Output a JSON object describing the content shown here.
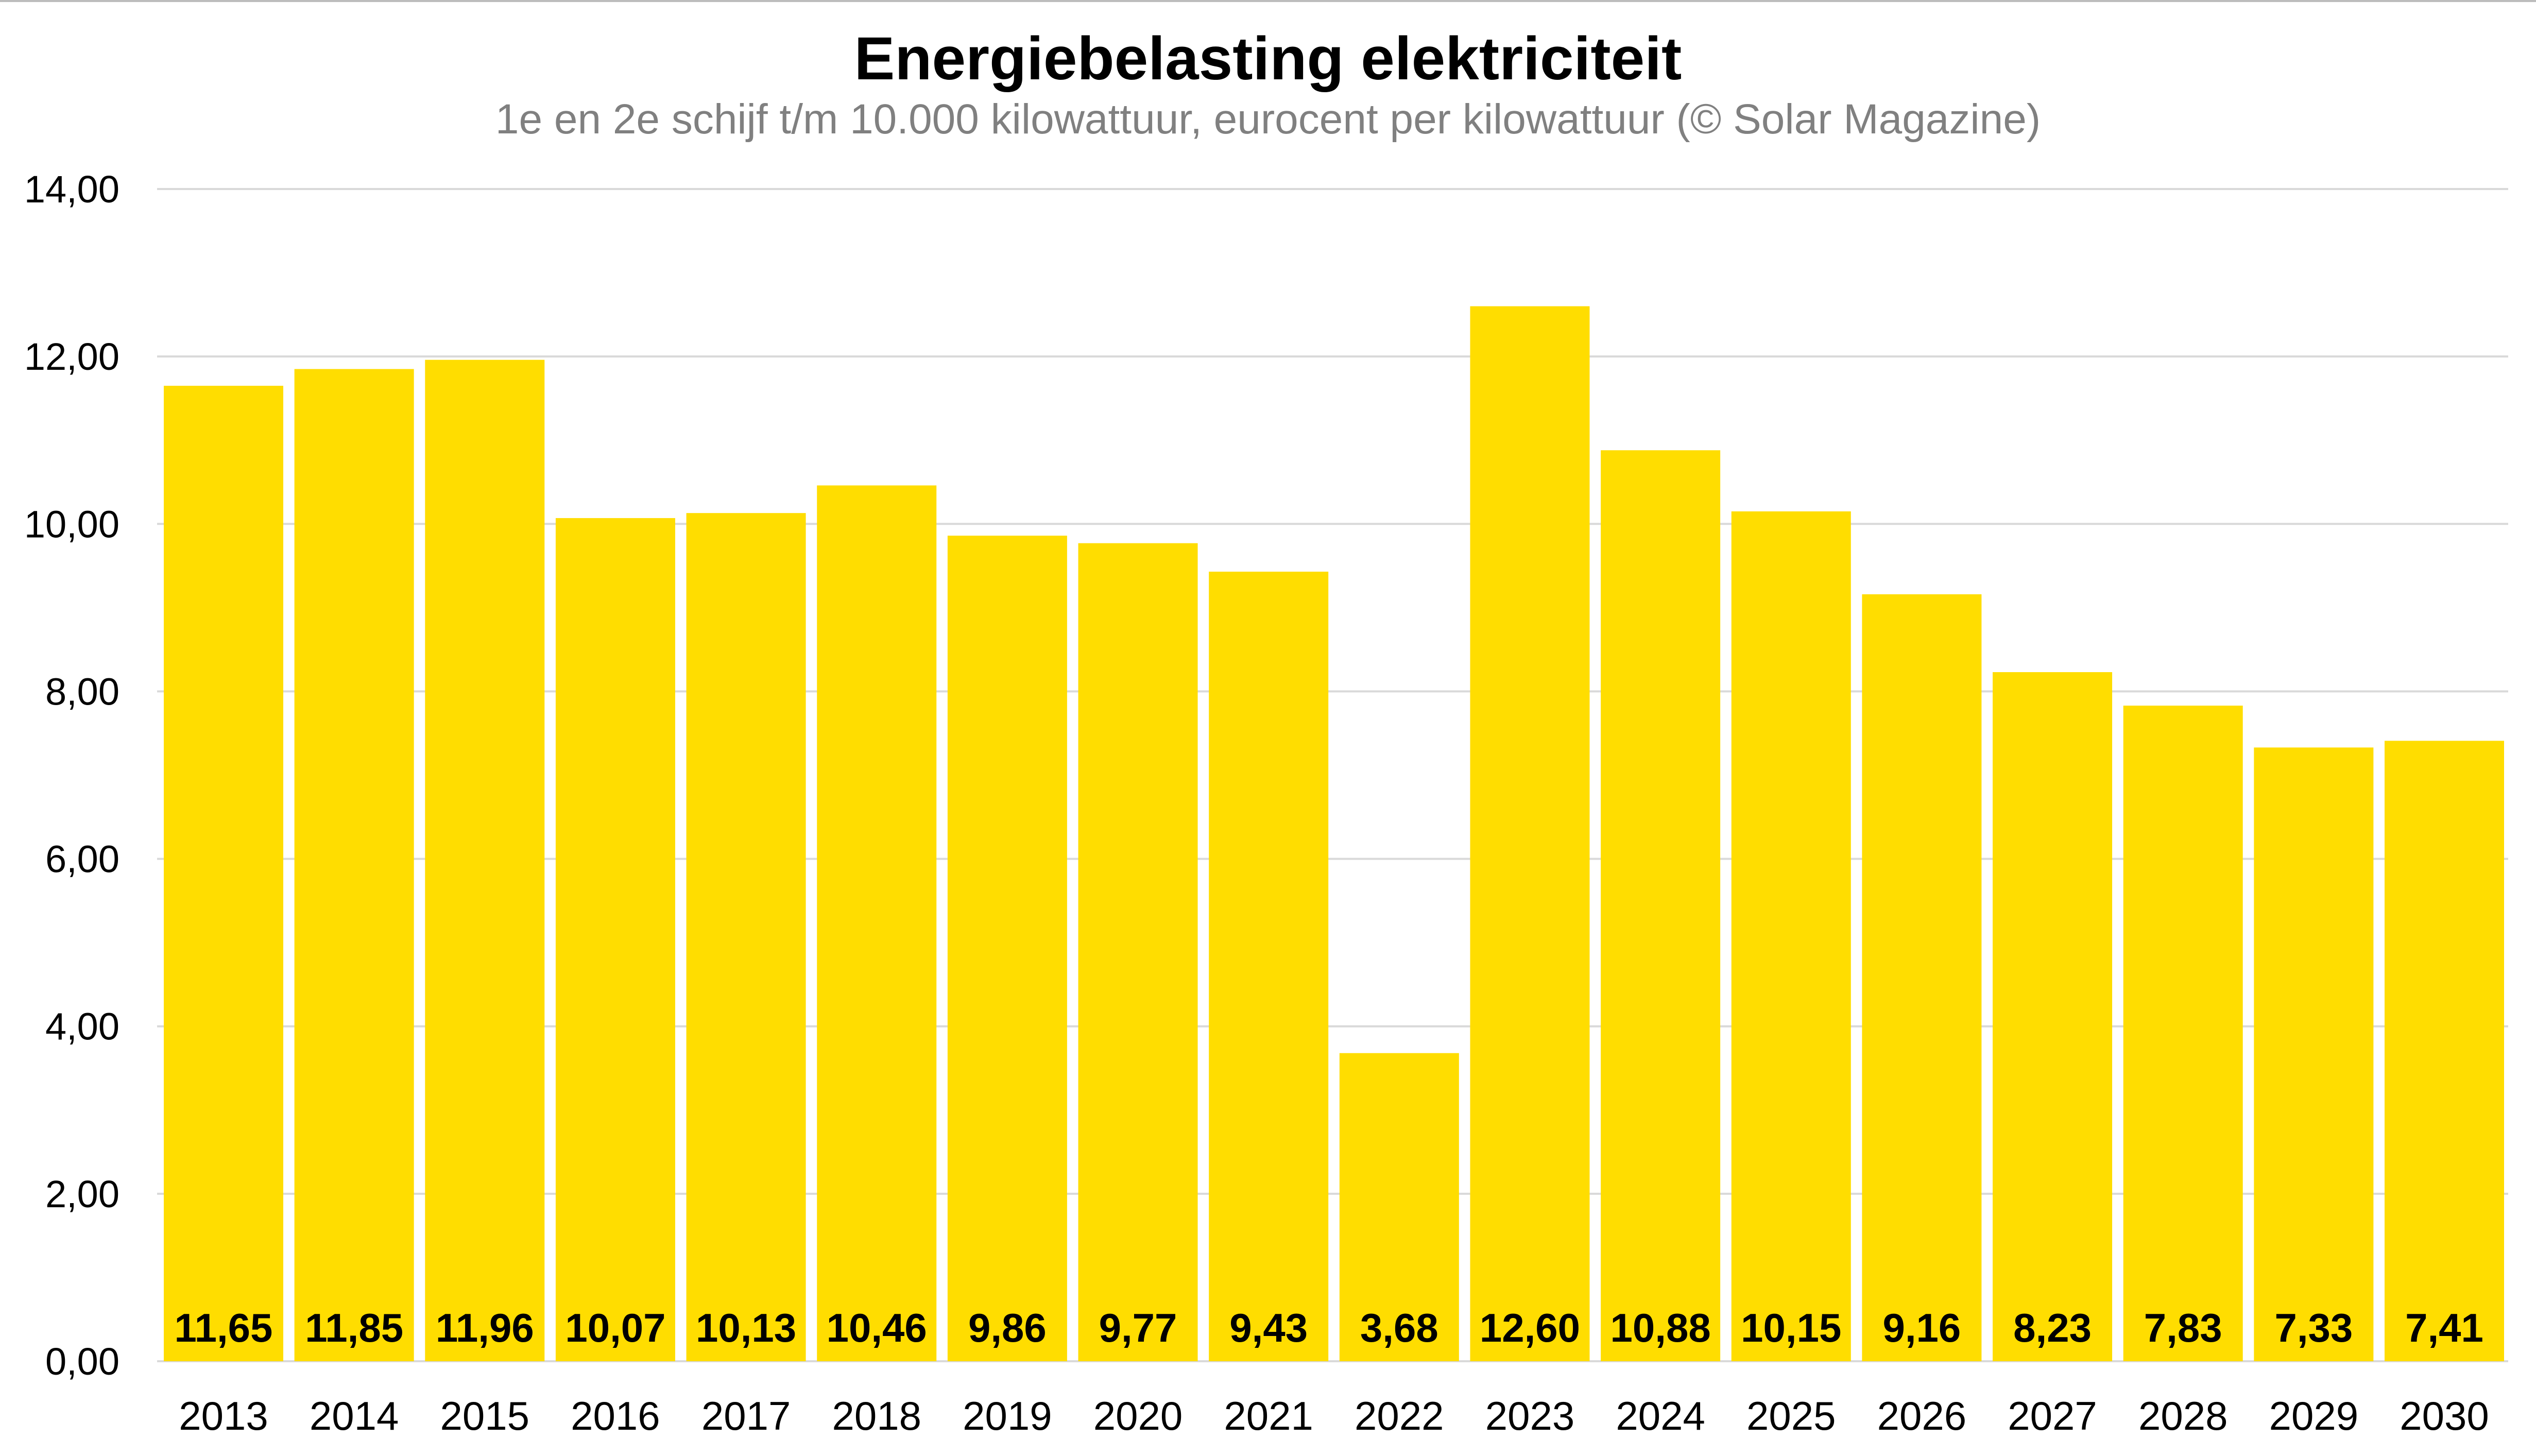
{
  "chart_data": {
    "type": "bar",
    "title": "Energiebelasting elektriciteit",
    "subtitle": "1e en 2e schijf t/m 10.000 kilowattuur, eurocent per kilowattuur (© Solar Magazine)",
    "categories": [
      "2013",
      "2014",
      "2015",
      "2016",
      "2017",
      "2018",
      "2019",
      "2020",
      "2021",
      "2022",
      "2023",
      "2024",
      "2025",
      "2026",
      "2027",
      "2028",
      "2029",
      "2030"
    ],
    "values": [
      11.65,
      11.85,
      11.96,
      10.07,
      10.13,
      10.46,
      9.86,
      9.77,
      9.43,
      3.68,
      12.6,
      10.88,
      10.15,
      9.16,
      8.23,
      7.83,
      7.33,
      7.41
    ],
    "value_labels": [
      "11,65",
      "11,85",
      "11,96",
      "10,07",
      "10,13",
      "10,46",
      "9,86",
      "9,77",
      "9,43",
      "3,68",
      "12,60",
      "10,88",
      "10,15",
      "9,16",
      "8,23",
      "7,83",
      "7,33",
      "7,41"
    ],
    "ylim": [
      0,
      14
    ],
    "yticks": [
      0,
      2,
      4,
      6,
      8,
      10,
      12,
      14
    ],
    "ytick_labels": [
      "0,00",
      "2,00",
      "4,00",
      "6,00",
      "8,00",
      "10,00",
      "12,00",
      "14,00"
    ],
    "xlabel": "",
    "ylabel": "",
    "grid": true,
    "legend": "none",
    "colors": {
      "bar": "#FFDD00",
      "gridline": "#d9d9d9",
      "subtitle": "#808080"
    }
  }
}
